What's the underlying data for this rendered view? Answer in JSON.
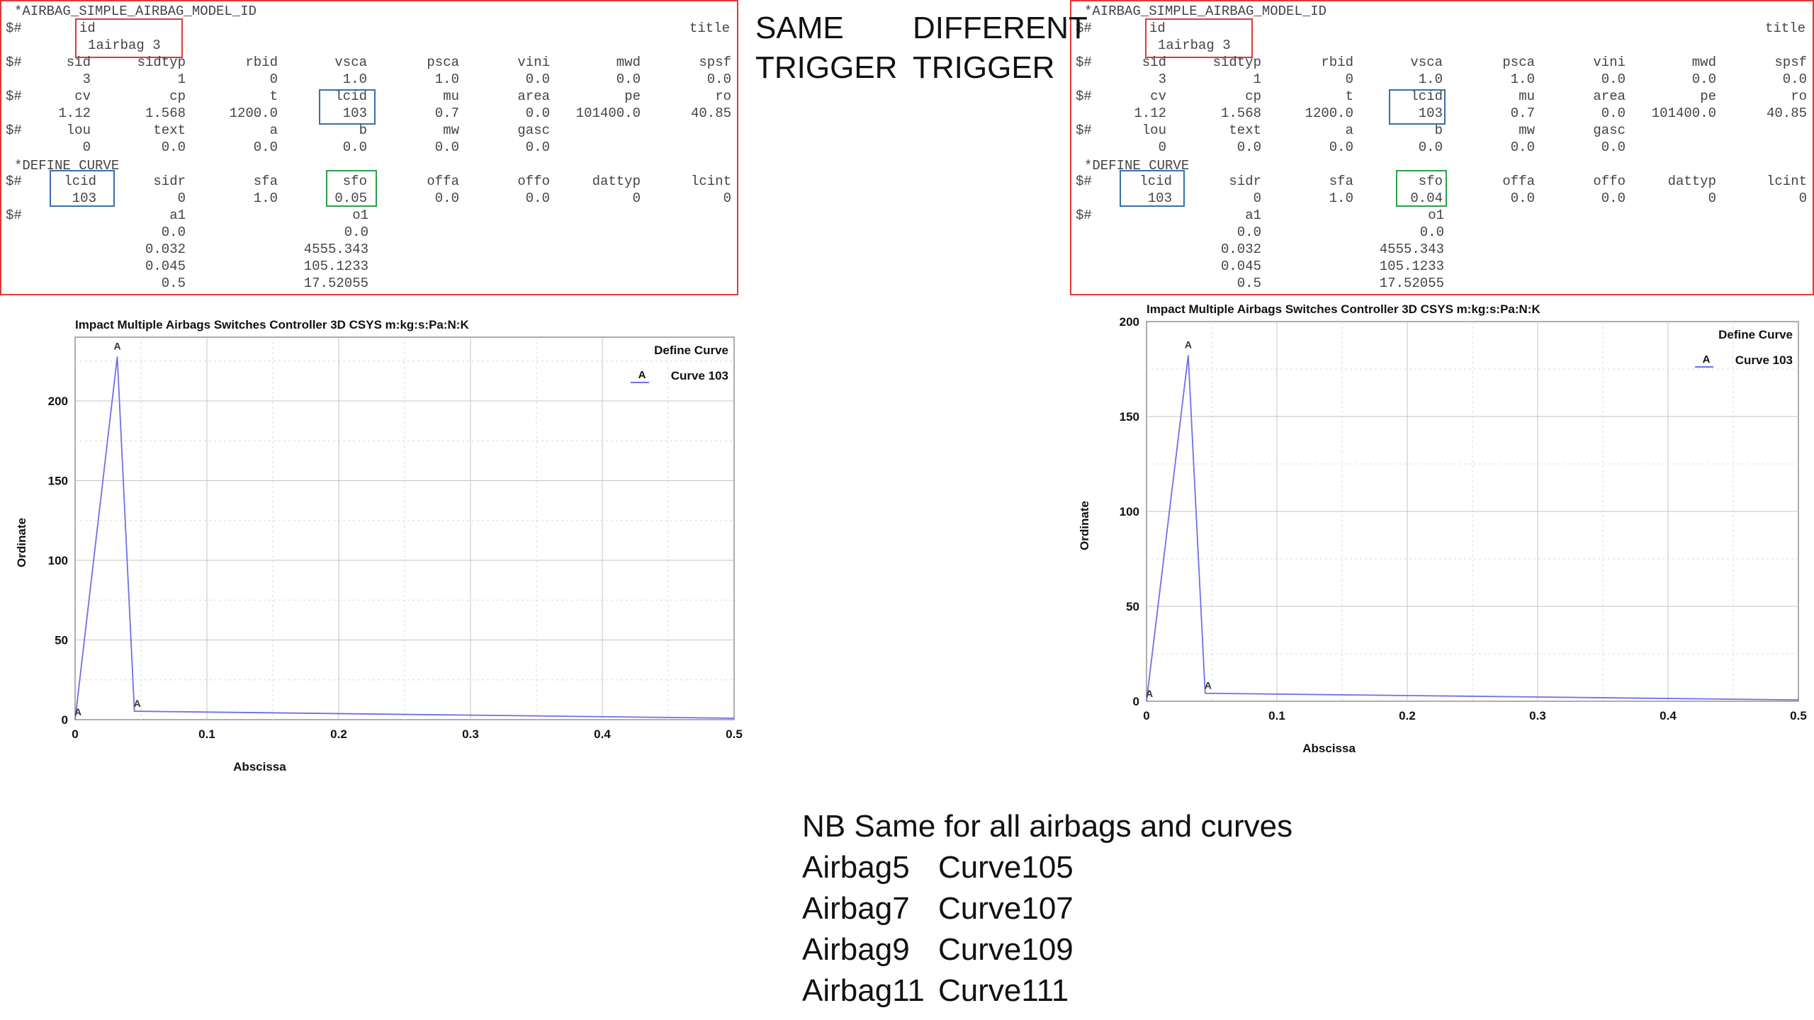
{
  "labels": {
    "same": "SAME\nTRIGGER",
    "different": "DIFFERENT\nTRIGGER"
  },
  "keyword_panels": [
    {
      "header": "*AIRBAG_SIMPLE_AIRBAG_MODEL_ID",
      "r1_prefix": "$#",
      "id_label": "id",
      "title_label": "title",
      "id_value": "1airbag 3",
      "rows": [
        {
          "prefix": "$#",
          "h": [
            "sid",
            "sidtyp",
            "rbid",
            "vsca",
            "psca",
            "vini",
            "mwd",
            "spsf"
          ],
          "v": [
            "3",
            "1",
            "0",
            "1.0",
            "1.0",
            "0.0",
            "0.0",
            "0.0"
          ]
        },
        {
          "prefix": "$#",
          "h": [
            "cv",
            "cp",
            "t",
            "lcid",
            "mu",
            "area",
            "pe",
            "ro"
          ],
          "v": [
            "1.12",
            "1.568",
            "1200.0",
            "103",
            "0.7",
            "0.0",
            "101400.0",
            "40.85"
          ]
        },
        {
          "prefix": "$#",
          "h": [
            "lou",
            "text",
            "a",
            "b",
            "mw",
            "gasc",
            "",
            ""
          ],
          "v": [
            "0",
            "0.0",
            "0.0",
            "0.0",
            "0.0",
            "0.0",
            "",
            ""
          ]
        }
      ],
      "curve_header": "*DEFINE_CURVE",
      "curve_row": {
        "prefix": "$#",
        "h": [
          "lcid",
          "sidr",
          "sfa",
          "sfo",
          "offa",
          "offo",
          "dattyp",
          "lcint"
        ],
        "v": [
          "103",
          "0",
          "1.0",
          "0.05",
          "0.0",
          "0.0",
          "0",
          "0"
        ]
      },
      "points_prefix": "$#",
      "a1": "a1",
      "o1": "o1",
      "points": [
        [
          "0.0",
          "0.0"
        ],
        [
          "0.032",
          "4555.343"
        ],
        [
          "0.045",
          "105.1233"
        ],
        [
          "0.5",
          "17.52055"
        ]
      ]
    },
    {
      "header": "*AIRBAG_SIMPLE_AIRBAG_MODEL_ID",
      "r1_prefix": "$#",
      "id_label": "id",
      "title_label": "title",
      "id_value": "1airbag 3",
      "rows": [
        {
          "prefix": "$#",
          "h": [
            "sid",
            "sidtyp",
            "rbid",
            "vsca",
            "psca",
            "vini",
            "mwd",
            "spsf"
          ],
          "v": [
            "3",
            "1",
            "0",
            "1.0",
            "1.0",
            "0.0",
            "0.0",
            "0.0"
          ]
        },
        {
          "prefix": "$#",
          "h": [
            "cv",
            "cp",
            "t",
            "lcid",
            "mu",
            "area",
            "pe",
            "ro"
          ],
          "v": [
            "1.12",
            "1.568",
            "1200.0",
            "103",
            "0.7",
            "0.0",
            "101400.0",
            "40.85"
          ]
        },
        {
          "prefix": "$#",
          "h": [
            "lou",
            "text",
            "a",
            "b",
            "mw",
            "gasc",
            "",
            ""
          ],
          "v": [
            "0",
            "0.0",
            "0.0",
            "0.0",
            "0.0",
            "0.0",
            "",
            ""
          ]
        }
      ],
      "curve_header": "*DEFINE_CURVE",
      "curve_row": {
        "prefix": "$#",
        "h": [
          "lcid",
          "sidr",
          "sfa",
          "sfo",
          "offa",
          "offo",
          "dattyp",
          "lcint"
        ],
        "v": [
          "103",
          "0",
          "1.0",
          "0.04",
          "0.0",
          "0.0",
          "0",
          "0"
        ]
      },
      "points_prefix": "$#",
      "a1": "a1",
      "o1": "o1",
      "points": [
        [
          "0.0",
          "0.0"
        ],
        [
          "0.032",
          "4555.343"
        ],
        [
          "0.045",
          "105.1233"
        ],
        [
          "0.5",
          "17.52055"
        ]
      ]
    }
  ],
  "chart_data": [
    {
      "type": "line",
      "title": "Impact Multiple Airbags Switches Controller 3D CSYS m:kg:s:Pa:N:K",
      "xlabel": "Abscissa",
      "ylabel": "Ordinate",
      "xlim": [
        0,
        0.5
      ],
      "ylim": [
        0,
        240
      ],
      "xticks": [
        0,
        0.1,
        0.2,
        0.3,
        0.4,
        0.5
      ],
      "xtick_labels": [
        "0",
        "0.1",
        "0.2",
        "0.3",
        "0.4",
        "0.5"
      ],
      "yticks": [
        0,
        50,
        100,
        150,
        200
      ],
      "ytick_labels": [
        "0",
        "50",
        "100",
        "150",
        "200"
      ],
      "grid": true,
      "legend_title": "Define Curve",
      "legend_position": "top-right",
      "series": [
        {
          "name": "Curve 103",
          "marker": "A",
          "color": "#6f6fe8",
          "x": [
            0,
            0.032,
            0.045,
            0.5
          ],
          "y": [
            0,
            227.8,
            5.3,
            0.9
          ]
        }
      ]
    },
    {
      "type": "line",
      "title": "Impact Multiple Airbags Switches Controller 3D CSYS m:kg:s:Pa:N:K",
      "xlabel": "Abscissa",
      "ylabel": "Ordinate",
      "xlim": [
        0,
        0.5
      ],
      "ylim": [
        0,
        200
      ],
      "xticks": [
        0,
        0.1,
        0.2,
        0.3,
        0.4,
        0.5
      ],
      "xtick_labels": [
        "0",
        "0.1",
        "0.2",
        "0.3",
        "0.4",
        "0.5"
      ],
      "yticks": [
        0,
        50,
        100,
        150,
        200
      ],
      "ytick_labels": [
        "0",
        "50",
        "100",
        "150",
        "200"
      ],
      "grid": true,
      "legend_title": "Define Curve",
      "legend_position": "top-right",
      "series": [
        {
          "name": "Curve 103",
          "marker": "A",
          "color": "#6f6fe8",
          "x": [
            0,
            0.032,
            0.045,
            0.5
          ],
          "y": [
            0,
            182.2,
            4.2,
            0.7
          ]
        }
      ]
    }
  ],
  "notes": {
    "title": "NB Same for all airbags and curves",
    "rows": [
      [
        "Airbag5",
        "Curve105"
      ],
      [
        "Airbag7",
        "Curve107"
      ],
      [
        "Airbag9",
        "Curve109"
      ],
      [
        "Airbag11",
        "Curve111"
      ]
    ]
  }
}
